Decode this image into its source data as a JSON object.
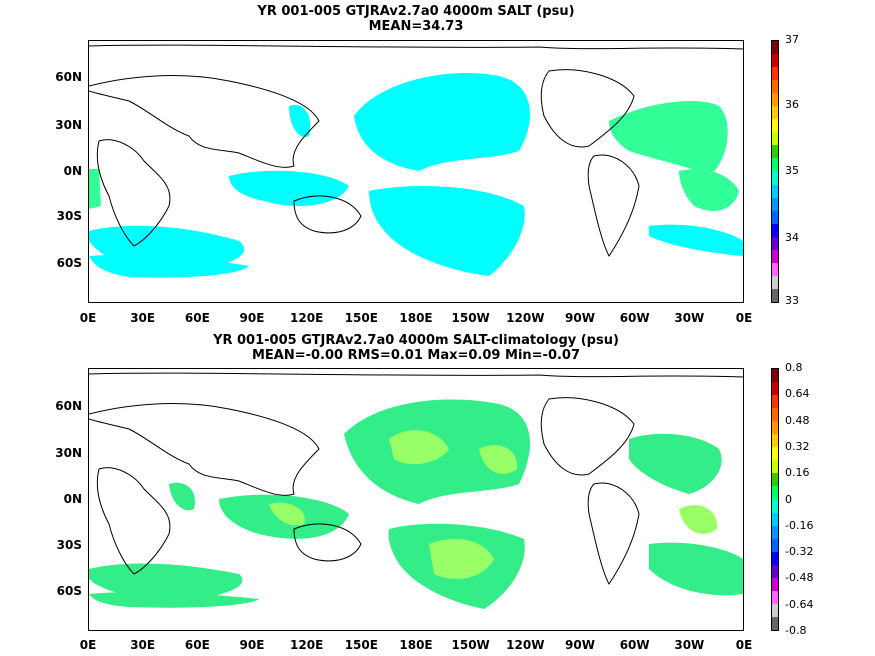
{
  "top": {
    "title_line1": "YR 001-005 GTJRAv2.7a0 4000m SALT (psu)",
    "title_line2": "MEAN=34.73",
    "colorbar_labels": [
      "37",
      "36",
      "35",
      "34",
      "33"
    ]
  },
  "bottom": {
    "title_line1": "YR 001-005 GTJRAv2.7a0 4000m SALT-climatology (psu)",
    "title_line2": "MEAN=-0.00   RMS=0.01   Max=0.09   Min=-0.07",
    "colorbar_labels": [
      "0.8",
      "0.64",
      "0.48",
      "0.32",
      "0.16",
      "0",
      "-0.16",
      "-0.32",
      "-0.48",
      "-0.64",
      "-0.8"
    ]
  },
  "axes": {
    "lat_labels": [
      "60N",
      "30N",
      "0N",
      "30S",
      "60S"
    ],
    "lon_labels": [
      "0E",
      "30E",
      "60E",
      "90E",
      "120E",
      "150E",
      "180E",
      "150W",
      "120W",
      "90W",
      "60W",
      "30W",
      "0E"
    ]
  },
  "colors": {
    "top_fill": "#00ffff",
    "top_fill_high": "#33ff99",
    "bottom_fill_a": "#33ee88",
    "bottom_fill_b": "#99ff66",
    "colorbar": [
      "#7f0000",
      "#cc0000",
      "#ff3300",
      "#ff6600",
      "#ff9900",
      "#ffcc00",
      "#ffff00",
      "#ccff00",
      "#33cc00",
      "#00ff66",
      "#00ffcc",
      "#00ccff",
      "#0099ff",
      "#0066ff",
      "#0000ff",
      "#6600cc",
      "#cc00cc",
      "#ff66ff",
      "#cccccc",
      "#666666"
    ]
  }
}
